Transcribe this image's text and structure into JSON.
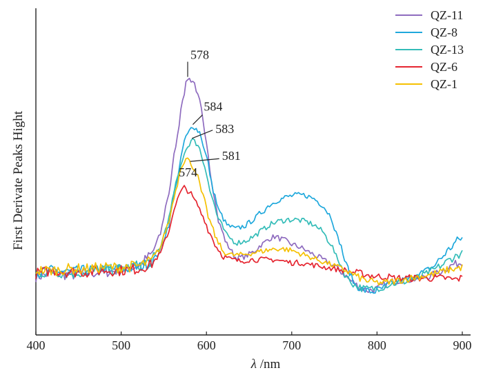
{
  "chart_data": {
    "type": "line",
    "xlabel_italic": "λ",
    "xlabel_rest": " /nm",
    "ylabel": "First Derivate Peaks Hight",
    "xlim": [
      400,
      905
    ],
    "ylim": [
      0,
      1
    ],
    "xticks": [
      400,
      500,
      600,
      700,
      800,
      900
    ],
    "xtick_labels": [
      "400",
      "500",
      "600",
      "700",
      "800",
      "900"
    ],
    "legend_position": "top-right",
    "series": [
      {
        "name": "QZ-11",
        "color": "#8e6bbf",
        "points": [
          [
            400,
            0.19
          ],
          [
            420,
            0.2
          ],
          [
            440,
            0.195
          ],
          [
            460,
            0.2
          ],
          [
            480,
            0.205
          ],
          [
            500,
            0.21
          ],
          [
            520,
            0.225
          ],
          [
            535,
            0.26
          ],
          [
            545,
            0.32
          ],
          [
            555,
            0.45
          ],
          [
            565,
            0.63
          ],
          [
            572,
            0.77
          ],
          [
            578,
            0.835
          ],
          [
            585,
            0.825
          ],
          [
            592,
            0.76
          ],
          [
            600,
            0.62
          ],
          [
            608,
            0.47
          ],
          [
            615,
            0.36
          ],
          [
            625,
            0.29
          ],
          [
            635,
            0.25
          ],
          [
            645,
            0.255
          ],
          [
            655,
            0.27
          ],
          [
            665,
            0.295
          ],
          [
            675,
            0.315
          ],
          [
            680,
            0.32
          ],
          [
            690,
            0.31
          ],
          [
            700,
            0.295
          ],
          [
            710,
            0.285
          ],
          [
            720,
            0.27
          ],
          [
            730,
            0.255
          ],
          [
            740,
            0.24
          ],
          [
            750,
            0.225
          ],
          [
            760,
            0.2
          ],
          [
            770,
            0.175
          ],
          [
            780,
            0.155
          ],
          [
            790,
            0.145
          ],
          [
            800,
            0.15
          ],
          [
            810,
            0.165
          ],
          [
            820,
            0.175
          ],
          [
            830,
            0.18
          ],
          [
            840,
            0.18
          ],
          [
            850,
            0.185
          ],
          [
            860,
            0.19
          ],
          [
            870,
            0.2
          ],
          [
            880,
            0.215
          ],
          [
            890,
            0.23
          ],
          [
            900,
            0.235
          ]
        ]
      },
      {
        "name": "QZ-8",
        "color": "#1fa8dc",
        "points": [
          [
            400,
            0.2
          ],
          [
            420,
            0.21
          ],
          [
            440,
            0.205
          ],
          [
            460,
            0.21
          ],
          [
            480,
            0.215
          ],
          [
            500,
            0.215
          ],
          [
            520,
            0.22
          ],
          [
            535,
            0.235
          ],
          [
            545,
            0.27
          ],
          [
            555,
            0.35
          ],
          [
            565,
            0.5
          ],
          [
            575,
            0.64
          ],
          [
            584,
            0.68
          ],
          [
            592,
            0.66
          ],
          [
            600,
            0.58
          ],
          [
            608,
            0.47
          ],
          [
            615,
            0.4
          ],
          [
            625,
            0.355
          ],
          [
            635,
            0.345
          ],
          [
            645,
            0.355
          ],
          [
            655,
            0.375
          ],
          [
            665,
            0.4
          ],
          [
            675,
            0.425
          ],
          [
            685,
            0.44
          ],
          [
            695,
            0.45
          ],
          [
            705,
            0.455
          ],
          [
            715,
            0.455
          ],
          [
            725,
            0.445
          ],
          [
            735,
            0.425
          ],
          [
            745,
            0.39
          ],
          [
            755,
            0.31
          ],
          [
            765,
            0.22
          ],
          [
            775,
            0.16
          ],
          [
            785,
            0.145
          ],
          [
            795,
            0.14
          ],
          [
            805,
            0.15
          ],
          [
            815,
            0.165
          ],
          [
            825,
            0.175
          ],
          [
            835,
            0.18
          ],
          [
            845,
            0.19
          ],
          [
            855,
            0.205
          ],
          [
            865,
            0.22
          ],
          [
            875,
            0.25
          ],
          [
            885,
            0.28
          ],
          [
            895,
            0.31
          ],
          [
            900,
            0.315
          ]
        ]
      },
      {
        "name": "QZ-13",
        "color": "#33bcb8",
        "points": [
          [
            400,
            0.2
          ],
          [
            420,
            0.205
          ],
          [
            440,
            0.2
          ],
          [
            460,
            0.205
          ],
          [
            480,
            0.21
          ],
          [
            500,
            0.215
          ],
          [
            520,
            0.225
          ],
          [
            535,
            0.24
          ],
          [
            545,
            0.28
          ],
          [
            555,
            0.37
          ],
          [
            565,
            0.5
          ],
          [
            575,
            0.6
          ],
          [
            583,
            0.635
          ],
          [
            590,
            0.62
          ],
          [
            598,
            0.55
          ],
          [
            606,
            0.45
          ],
          [
            615,
            0.37
          ],
          [
            625,
            0.32
          ],
          [
            635,
            0.3
          ],
          [
            645,
            0.305
          ],
          [
            655,
            0.32
          ],
          [
            665,
            0.34
          ],
          [
            675,
            0.36
          ],
          [
            685,
            0.37
          ],
          [
            695,
            0.375
          ],
          [
            705,
            0.375
          ],
          [
            715,
            0.37
          ],
          [
            725,
            0.36
          ],
          [
            735,
            0.34
          ],
          [
            745,
            0.3
          ],
          [
            755,
            0.24
          ],
          [
            765,
            0.185
          ],
          [
            775,
            0.16
          ],
          [
            785,
            0.15
          ],
          [
            795,
            0.15
          ],
          [
            805,
            0.155
          ],
          [
            815,
            0.165
          ],
          [
            825,
            0.17
          ],
          [
            835,
            0.175
          ],
          [
            845,
            0.185
          ],
          [
            855,
            0.195
          ],
          [
            865,
            0.21
          ],
          [
            875,
            0.225
          ],
          [
            885,
            0.245
          ],
          [
            895,
            0.26
          ],
          [
            900,
            0.265
          ]
        ]
      },
      {
        "name": "QZ-6",
        "color": "#e5242f",
        "points": [
          [
            400,
            0.2
          ],
          [
            420,
            0.21
          ],
          [
            440,
            0.205
          ],
          [
            460,
            0.205
          ],
          [
            480,
            0.21
          ],
          [
            500,
            0.21
          ],
          [
            520,
            0.215
          ],
          [
            535,
            0.23
          ],
          [
            545,
            0.26
          ],
          [
            555,
            0.33
          ],
          [
            563,
            0.42
          ],
          [
            570,
            0.465
          ],
          [
            574,
            0.48
          ],
          [
            580,
            0.465
          ],
          [
            588,
            0.43
          ],
          [
            596,
            0.385
          ],
          [
            604,
            0.33
          ],
          [
            612,
            0.285
          ],
          [
            620,
            0.255
          ],
          [
            630,
            0.245
          ],
          [
            640,
            0.24
          ],
          [
            650,
            0.245
          ],
          [
            660,
            0.245
          ],
          [
            670,
            0.245
          ],
          [
            680,
            0.245
          ],
          [
            690,
            0.24
          ],
          [
            700,
            0.235
          ],
          [
            710,
            0.235
          ],
          [
            720,
            0.23
          ],
          [
            730,
            0.225
          ],
          [
            740,
            0.22
          ],
          [
            750,
            0.215
          ],
          [
            760,
            0.21
          ],
          [
            770,
            0.205
          ],
          [
            780,
            0.2
          ],
          [
            790,
            0.195
          ],
          [
            800,
            0.19
          ],
          [
            810,
            0.19
          ],
          [
            820,
            0.185
          ],
          [
            830,
            0.185
          ],
          [
            840,
            0.185
          ],
          [
            850,
            0.185
          ],
          [
            860,
            0.185
          ],
          [
            870,
            0.185
          ],
          [
            880,
            0.185
          ],
          [
            890,
            0.18
          ],
          [
            900,
            0.185
          ]
        ]
      },
      {
        "name": "QZ-1",
        "color": "#f5c000",
        "points": [
          [
            400,
            0.21
          ],
          [
            420,
            0.21
          ],
          [
            440,
            0.215
          ],
          [
            460,
            0.215
          ],
          [
            480,
            0.22
          ],
          [
            500,
            0.22
          ],
          [
            520,
            0.225
          ],
          [
            535,
            0.24
          ],
          [
            545,
            0.28
          ],
          [
            555,
            0.36
          ],
          [
            563,
            0.46
          ],
          [
            571,
            0.555
          ],
          [
            577,
            0.575
          ],
          [
            581,
            0.56
          ],
          [
            588,
            0.53
          ],
          [
            596,
            0.45
          ],
          [
            604,
            0.37
          ],
          [
            612,
            0.31
          ],
          [
            620,
            0.27
          ],
          [
            630,
            0.26
          ],
          [
            640,
            0.26
          ],
          [
            650,
            0.265
          ],
          [
            660,
            0.27
          ],
          [
            670,
            0.275
          ],
          [
            680,
            0.28
          ],
          [
            690,
            0.28
          ],
          [
            700,
            0.275
          ],
          [
            710,
            0.265
          ],
          [
            720,
            0.255
          ],
          [
            730,
            0.245
          ],
          [
            740,
            0.235
          ],
          [
            750,
            0.225
          ],
          [
            760,
            0.215
          ],
          [
            770,
            0.2
          ],
          [
            780,
            0.185
          ],
          [
            790,
            0.175
          ],
          [
            800,
            0.17
          ],
          [
            810,
            0.17
          ],
          [
            820,
            0.175
          ],
          [
            830,
            0.18
          ],
          [
            840,
            0.185
          ],
          [
            850,
            0.19
          ],
          [
            860,
            0.195
          ],
          [
            870,
            0.2
          ],
          [
            880,
            0.21
          ],
          [
            890,
            0.215
          ],
          [
            900,
            0.22
          ]
        ]
      }
    ],
    "annotations": [
      {
        "text": "578",
        "series": "QZ-11",
        "x": 578
      },
      {
        "text": "584",
        "series": "QZ-8",
        "x": 584
      },
      {
        "text": "583",
        "series": "QZ-13",
        "x": 583
      },
      {
        "text": "581",
        "series": "QZ-1",
        "x": 581
      },
      {
        "text": "574",
        "series": "QZ-6",
        "x": 574
      }
    ]
  }
}
